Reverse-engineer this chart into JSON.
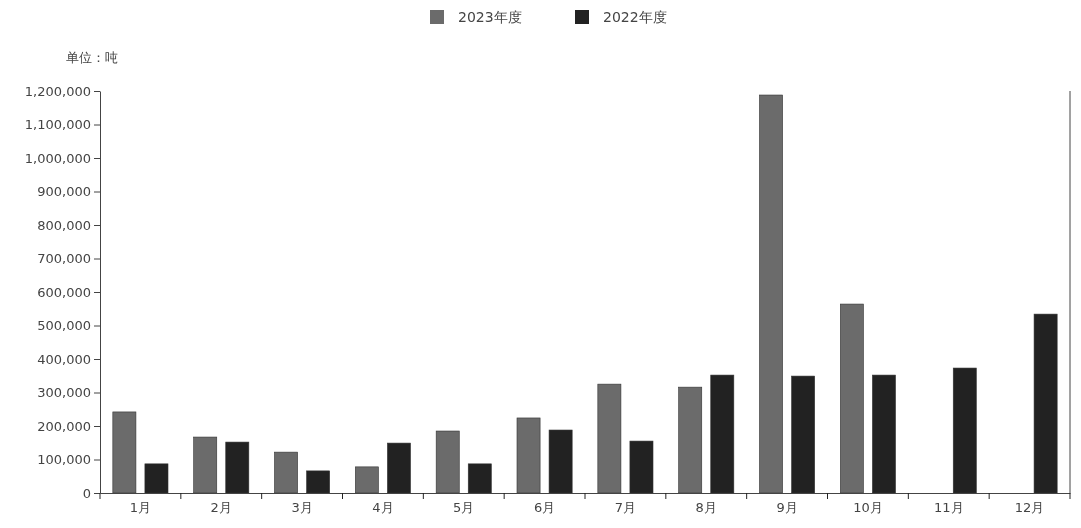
{
  "chart_data": {
    "type": "bar",
    "ylabel": "单位：吨",
    "categories": [
      "1月",
      "2月",
      "3月",
      "4月",
      "5月",
      "6月",
      "7月",
      "8月",
      "9月",
      "10月",
      "11月",
      "12月"
    ],
    "series": [
      {
        "name": "2023年度",
        "color": "#6b6b6b",
        "values": [
          242000,
          167000,
          122000,
          78000,
          185000,
          224000,
          325000,
          316000,
          1188000,
          564000,
          null,
          null
        ]
      },
      {
        "name": "2022年度",
        "color": "#222222",
        "values": [
          87000,
          152000,
          66000,
          149000,
          87000,
          188000,
          155000,
          352000,
          349000,
          352000,
          373000,
          534000
        ]
      }
    ],
    "ylim": [
      0,
      1200000
    ],
    "yticks": [
      {
        "value": 0,
        "label": "0"
      },
      {
        "value": 100000,
        "label": "100,000"
      },
      {
        "value": 200000,
        "label": "200,000"
      },
      {
        "value": 300000,
        "label": "300,000"
      },
      {
        "value": 400000,
        "label": "400,000"
      },
      {
        "value": 500000,
        "label": "500,000"
      },
      {
        "value": 600000,
        "label": "600,000"
      },
      {
        "value": 700000,
        "label": "700,000"
      },
      {
        "value": 800000,
        "label": "800,000"
      },
      {
        "value": 900000,
        "label": "900,000"
      },
      {
        "value": 1000000,
        "label": "1,000,000"
      },
      {
        "value": 1100000,
        "label": "1,100,000"
      },
      {
        "value": 1200000,
        "label": "1,200,000"
      }
    ],
    "grid": false,
    "legend": "top"
  }
}
